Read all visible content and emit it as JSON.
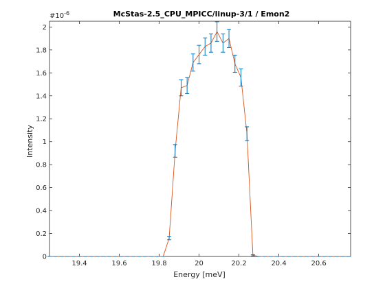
{
  "chart_data": {
    "type": "line",
    "title": "McStas-2.5_CPU_MPICC/linup-3/1 / Emon2",
    "xlabel": "Energy [meV]",
    "ylabel": "Intensity",
    "y_exponent_label": "#10",
    "y_exponent_power": "-6",
    "xlim": [
      19.25,
      20.76
    ],
    "ylim": [
      0,
      2.05
    ],
    "x_ticks": [
      19.4,
      19.6,
      19.8,
      20.0,
      20.2,
      20.4,
      20.6
    ],
    "x_tick_labels": [
      "19.4",
      "19.6",
      "19.8",
      "20",
      "20.2",
      "20.4",
      "20.6"
    ],
    "y_ticks": [
      0,
      0.2,
      0.4,
      0.6,
      0.8,
      1.0,
      1.2,
      1.4,
      1.6,
      1.8,
      2.0
    ],
    "y_tick_labels": [
      "0",
      "0.2",
      "0.4",
      "0.6",
      "0.8",
      "1",
      "1.2",
      "1.4",
      "1.6",
      "1.8",
      "2"
    ],
    "grid": false,
    "line_color": "#d95319",
    "errorbar_color": "#0072bd",
    "series": [
      {
        "x": [
          19.25,
          19.28,
          19.31,
          19.34,
          19.37,
          19.4,
          19.43,
          19.46,
          19.49,
          19.52,
          19.55,
          19.58,
          19.61,
          19.64,
          19.67,
          19.7,
          19.73,
          19.76,
          19.79,
          19.82,
          19.85,
          19.88,
          19.91,
          19.94,
          19.97,
          20.0,
          20.03,
          20.06,
          20.09,
          20.12,
          20.15,
          20.18,
          20.21,
          20.24,
          20.27,
          20.3,
          20.33,
          20.36,
          20.39,
          20.42,
          20.45,
          20.48,
          20.51,
          20.54,
          20.57,
          20.6,
          20.63,
          20.66,
          20.69,
          20.72,
          20.75
        ],
        "values": [
          0,
          0,
          0,
          0,
          0,
          0,
          0,
          0,
          0,
          0,
          0,
          0,
          0,
          0,
          0,
          0,
          0,
          0,
          0,
          0,
          0.16,
          0.92,
          1.47,
          1.49,
          1.69,
          1.76,
          1.83,
          1.86,
          1.96,
          1.86,
          1.9,
          1.68,
          1.56,
          1.07,
          0.01,
          0,
          0,
          0,
          0,
          0,
          0,
          0,
          0,
          0,
          0,
          0,
          0,
          0,
          0,
          0,
          0
        ],
        "errors": [
          0,
          0,
          0,
          0,
          0,
          0,
          0,
          0,
          0,
          0,
          0,
          0,
          0,
          0,
          0,
          0,
          0,
          0,
          0,
          0,
          0.015,
          0.055,
          0.07,
          0.07,
          0.075,
          0.08,
          0.075,
          0.08,
          0.085,
          0.08,
          0.08,
          0.075,
          0.075,
          0.06,
          0.005,
          0,
          0,
          0,
          0,
          0,
          0,
          0,
          0,
          0,
          0,
          0,
          0,
          0,
          0,
          0,
          0
        ]
      }
    ]
  }
}
